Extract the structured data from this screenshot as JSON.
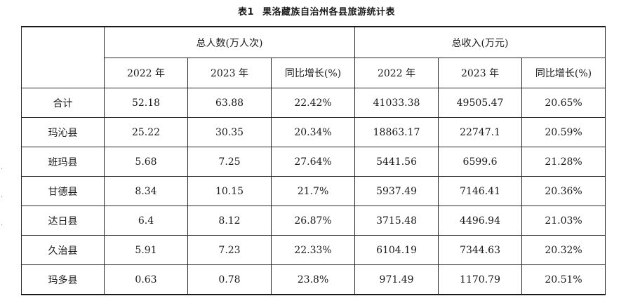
{
  "caption": {
    "number": "表1",
    "title": "果洛藏族自治州各县旅游统计表"
  },
  "header": {
    "group1": "总人数(万人次)",
    "group2": "总收入(万元)",
    "sub": [
      "2022 年",
      "2023 年",
      "同比增长(%)",
      "2022 年",
      "2023 年",
      "同比增长(%)"
    ]
  },
  "rows": [
    {
      "name": "合计",
      "values": [
        "52.18",
        "63.88",
        "22.42%",
        "41033.38",
        "49505.47",
        "20.65%"
      ]
    },
    {
      "name": "玛沁县",
      "values": [
        "25.22",
        "30.35",
        "20.34%",
        "18863.17",
        "22747.1",
        "20.59%"
      ]
    },
    {
      "name": "班玛县",
      "values": [
        "5.68",
        "7.25",
        "27.64%",
        "5441.56",
        "6599.6",
        "21.28%"
      ]
    },
    {
      "name": "甘德县",
      "values": [
        "8.34",
        "10.15",
        "21.7%",
        "5937.49",
        "7146.41",
        "20.36%"
      ]
    },
    {
      "name": "达日县",
      "values": [
        "6.4",
        "8.12",
        "26.87%",
        "3715.48",
        "4496.94",
        "21.03%"
      ]
    },
    {
      "name": "久治县",
      "values": [
        "5.91",
        "7.23",
        "22.33%",
        "6104.19",
        "7344.63",
        "20.32%"
      ]
    },
    {
      "name": "玛多县",
      "values": [
        "0.63",
        "0.78",
        "23.8%",
        "971.49",
        "1170.79",
        "20.51%"
      ]
    }
  ]
}
